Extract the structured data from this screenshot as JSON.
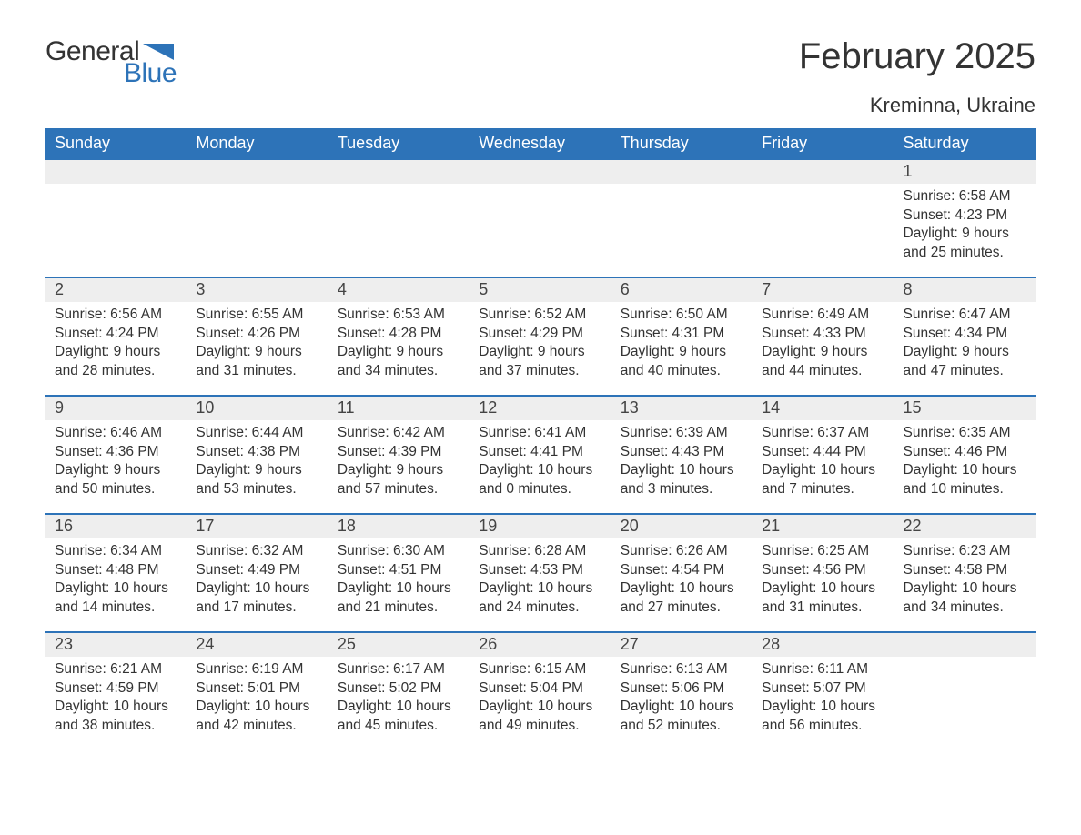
{
  "brand": {
    "word1": "General",
    "word2": "Blue",
    "logo_color": "#2d73b8"
  },
  "title": "February 2025",
  "location": "Kreminna, Ukraine",
  "colors": {
    "header_bg": "#2d73b8",
    "header_text": "#ffffff",
    "week_rule": "#2d73b8",
    "daynum_bg": "#eeeeee",
    "text": "#333333",
    "page_bg": "#ffffff"
  },
  "typography": {
    "title_fontsize": 40,
    "location_fontsize": 22,
    "dow_fontsize": 18,
    "daynum_fontsize": 18,
    "body_fontsize": 15.5
  },
  "days_of_week": [
    "Sunday",
    "Monday",
    "Tuesday",
    "Wednesday",
    "Thursday",
    "Friday",
    "Saturday"
  ],
  "weeks": [
    [
      null,
      null,
      null,
      null,
      null,
      null,
      {
        "n": 1,
        "sunrise": "6:58 AM",
        "sunset": "4:23 PM",
        "daylight": "9 hours and 25 minutes."
      }
    ],
    [
      {
        "n": 2,
        "sunrise": "6:56 AM",
        "sunset": "4:24 PM",
        "daylight": "9 hours and 28 minutes."
      },
      {
        "n": 3,
        "sunrise": "6:55 AM",
        "sunset": "4:26 PM",
        "daylight": "9 hours and 31 minutes."
      },
      {
        "n": 4,
        "sunrise": "6:53 AM",
        "sunset": "4:28 PM",
        "daylight": "9 hours and 34 minutes."
      },
      {
        "n": 5,
        "sunrise": "6:52 AM",
        "sunset": "4:29 PM",
        "daylight": "9 hours and 37 minutes."
      },
      {
        "n": 6,
        "sunrise": "6:50 AM",
        "sunset": "4:31 PM",
        "daylight": "9 hours and 40 minutes."
      },
      {
        "n": 7,
        "sunrise": "6:49 AM",
        "sunset": "4:33 PM",
        "daylight": "9 hours and 44 minutes."
      },
      {
        "n": 8,
        "sunrise": "6:47 AM",
        "sunset": "4:34 PM",
        "daylight": "9 hours and 47 minutes."
      }
    ],
    [
      {
        "n": 9,
        "sunrise": "6:46 AM",
        "sunset": "4:36 PM",
        "daylight": "9 hours and 50 minutes."
      },
      {
        "n": 10,
        "sunrise": "6:44 AM",
        "sunset": "4:38 PM",
        "daylight": "9 hours and 53 minutes."
      },
      {
        "n": 11,
        "sunrise": "6:42 AM",
        "sunset": "4:39 PM",
        "daylight": "9 hours and 57 minutes."
      },
      {
        "n": 12,
        "sunrise": "6:41 AM",
        "sunset": "4:41 PM",
        "daylight": "10 hours and 0 minutes."
      },
      {
        "n": 13,
        "sunrise": "6:39 AM",
        "sunset": "4:43 PM",
        "daylight": "10 hours and 3 minutes."
      },
      {
        "n": 14,
        "sunrise": "6:37 AM",
        "sunset": "4:44 PM",
        "daylight": "10 hours and 7 minutes."
      },
      {
        "n": 15,
        "sunrise": "6:35 AM",
        "sunset": "4:46 PM",
        "daylight": "10 hours and 10 minutes."
      }
    ],
    [
      {
        "n": 16,
        "sunrise": "6:34 AM",
        "sunset": "4:48 PM",
        "daylight": "10 hours and 14 minutes."
      },
      {
        "n": 17,
        "sunrise": "6:32 AM",
        "sunset": "4:49 PM",
        "daylight": "10 hours and 17 minutes."
      },
      {
        "n": 18,
        "sunrise": "6:30 AM",
        "sunset": "4:51 PM",
        "daylight": "10 hours and 21 minutes."
      },
      {
        "n": 19,
        "sunrise": "6:28 AM",
        "sunset": "4:53 PM",
        "daylight": "10 hours and 24 minutes."
      },
      {
        "n": 20,
        "sunrise": "6:26 AM",
        "sunset": "4:54 PM",
        "daylight": "10 hours and 27 minutes."
      },
      {
        "n": 21,
        "sunrise": "6:25 AM",
        "sunset": "4:56 PM",
        "daylight": "10 hours and 31 minutes."
      },
      {
        "n": 22,
        "sunrise": "6:23 AM",
        "sunset": "4:58 PM",
        "daylight": "10 hours and 34 minutes."
      }
    ],
    [
      {
        "n": 23,
        "sunrise": "6:21 AM",
        "sunset": "4:59 PM",
        "daylight": "10 hours and 38 minutes."
      },
      {
        "n": 24,
        "sunrise": "6:19 AM",
        "sunset": "5:01 PM",
        "daylight": "10 hours and 42 minutes."
      },
      {
        "n": 25,
        "sunrise": "6:17 AM",
        "sunset": "5:02 PM",
        "daylight": "10 hours and 45 minutes."
      },
      {
        "n": 26,
        "sunrise": "6:15 AM",
        "sunset": "5:04 PM",
        "daylight": "10 hours and 49 minutes."
      },
      {
        "n": 27,
        "sunrise": "6:13 AM",
        "sunset": "5:06 PM",
        "daylight": "10 hours and 52 minutes."
      },
      {
        "n": 28,
        "sunrise": "6:11 AM",
        "sunset": "5:07 PM",
        "daylight": "10 hours and 56 minutes."
      },
      null
    ]
  ],
  "labels": {
    "sunrise": "Sunrise:",
    "sunset": "Sunset:",
    "daylight": "Daylight:"
  }
}
